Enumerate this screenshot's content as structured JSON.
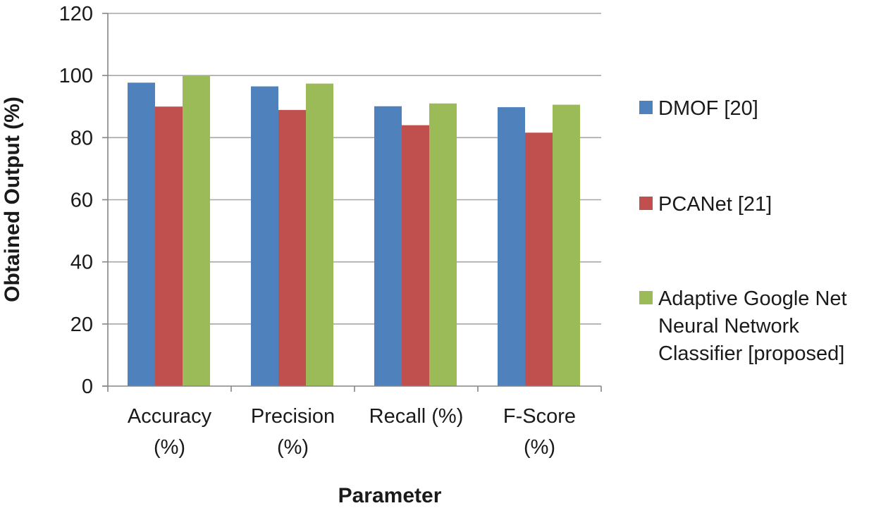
{
  "chart_data": {
    "type": "bar",
    "title": "",
    "xlabel": "Parameter",
    "ylabel": "Obtained Output (%)",
    "ylim": [
      0,
      120
    ],
    "yticks": [
      0,
      20,
      40,
      60,
      80,
      100,
      120
    ],
    "grid": true,
    "legend_position": "right",
    "categories": [
      [
        "Accuracy",
        "(%)"
      ],
      [
        "Precision",
        "(%)"
      ],
      [
        "Recall (%)"
      ],
      [
        "F-Score",
        "(%)"
      ]
    ],
    "series": [
      {
        "name": [
          "DMOF [20]"
        ],
        "color": "#4f81bd",
        "values": [
          97.7,
          96.5,
          90.1,
          89.8
        ]
      },
      {
        "name": [
          "PCANet [21]"
        ],
        "color": "#c0504d",
        "values": [
          90.0,
          88.9,
          84.0,
          81.6
        ]
      },
      {
        "name": [
          "Adaptive Google Net",
          "Neural Network",
          "Classifier [proposed]"
        ],
        "color": "#9bbb59",
        "values": [
          99.9,
          97.4,
          91.0,
          90.6
        ]
      }
    ],
    "colors": {
      "grid": "#a6a6a6",
      "axis": "#868686"
    }
  }
}
